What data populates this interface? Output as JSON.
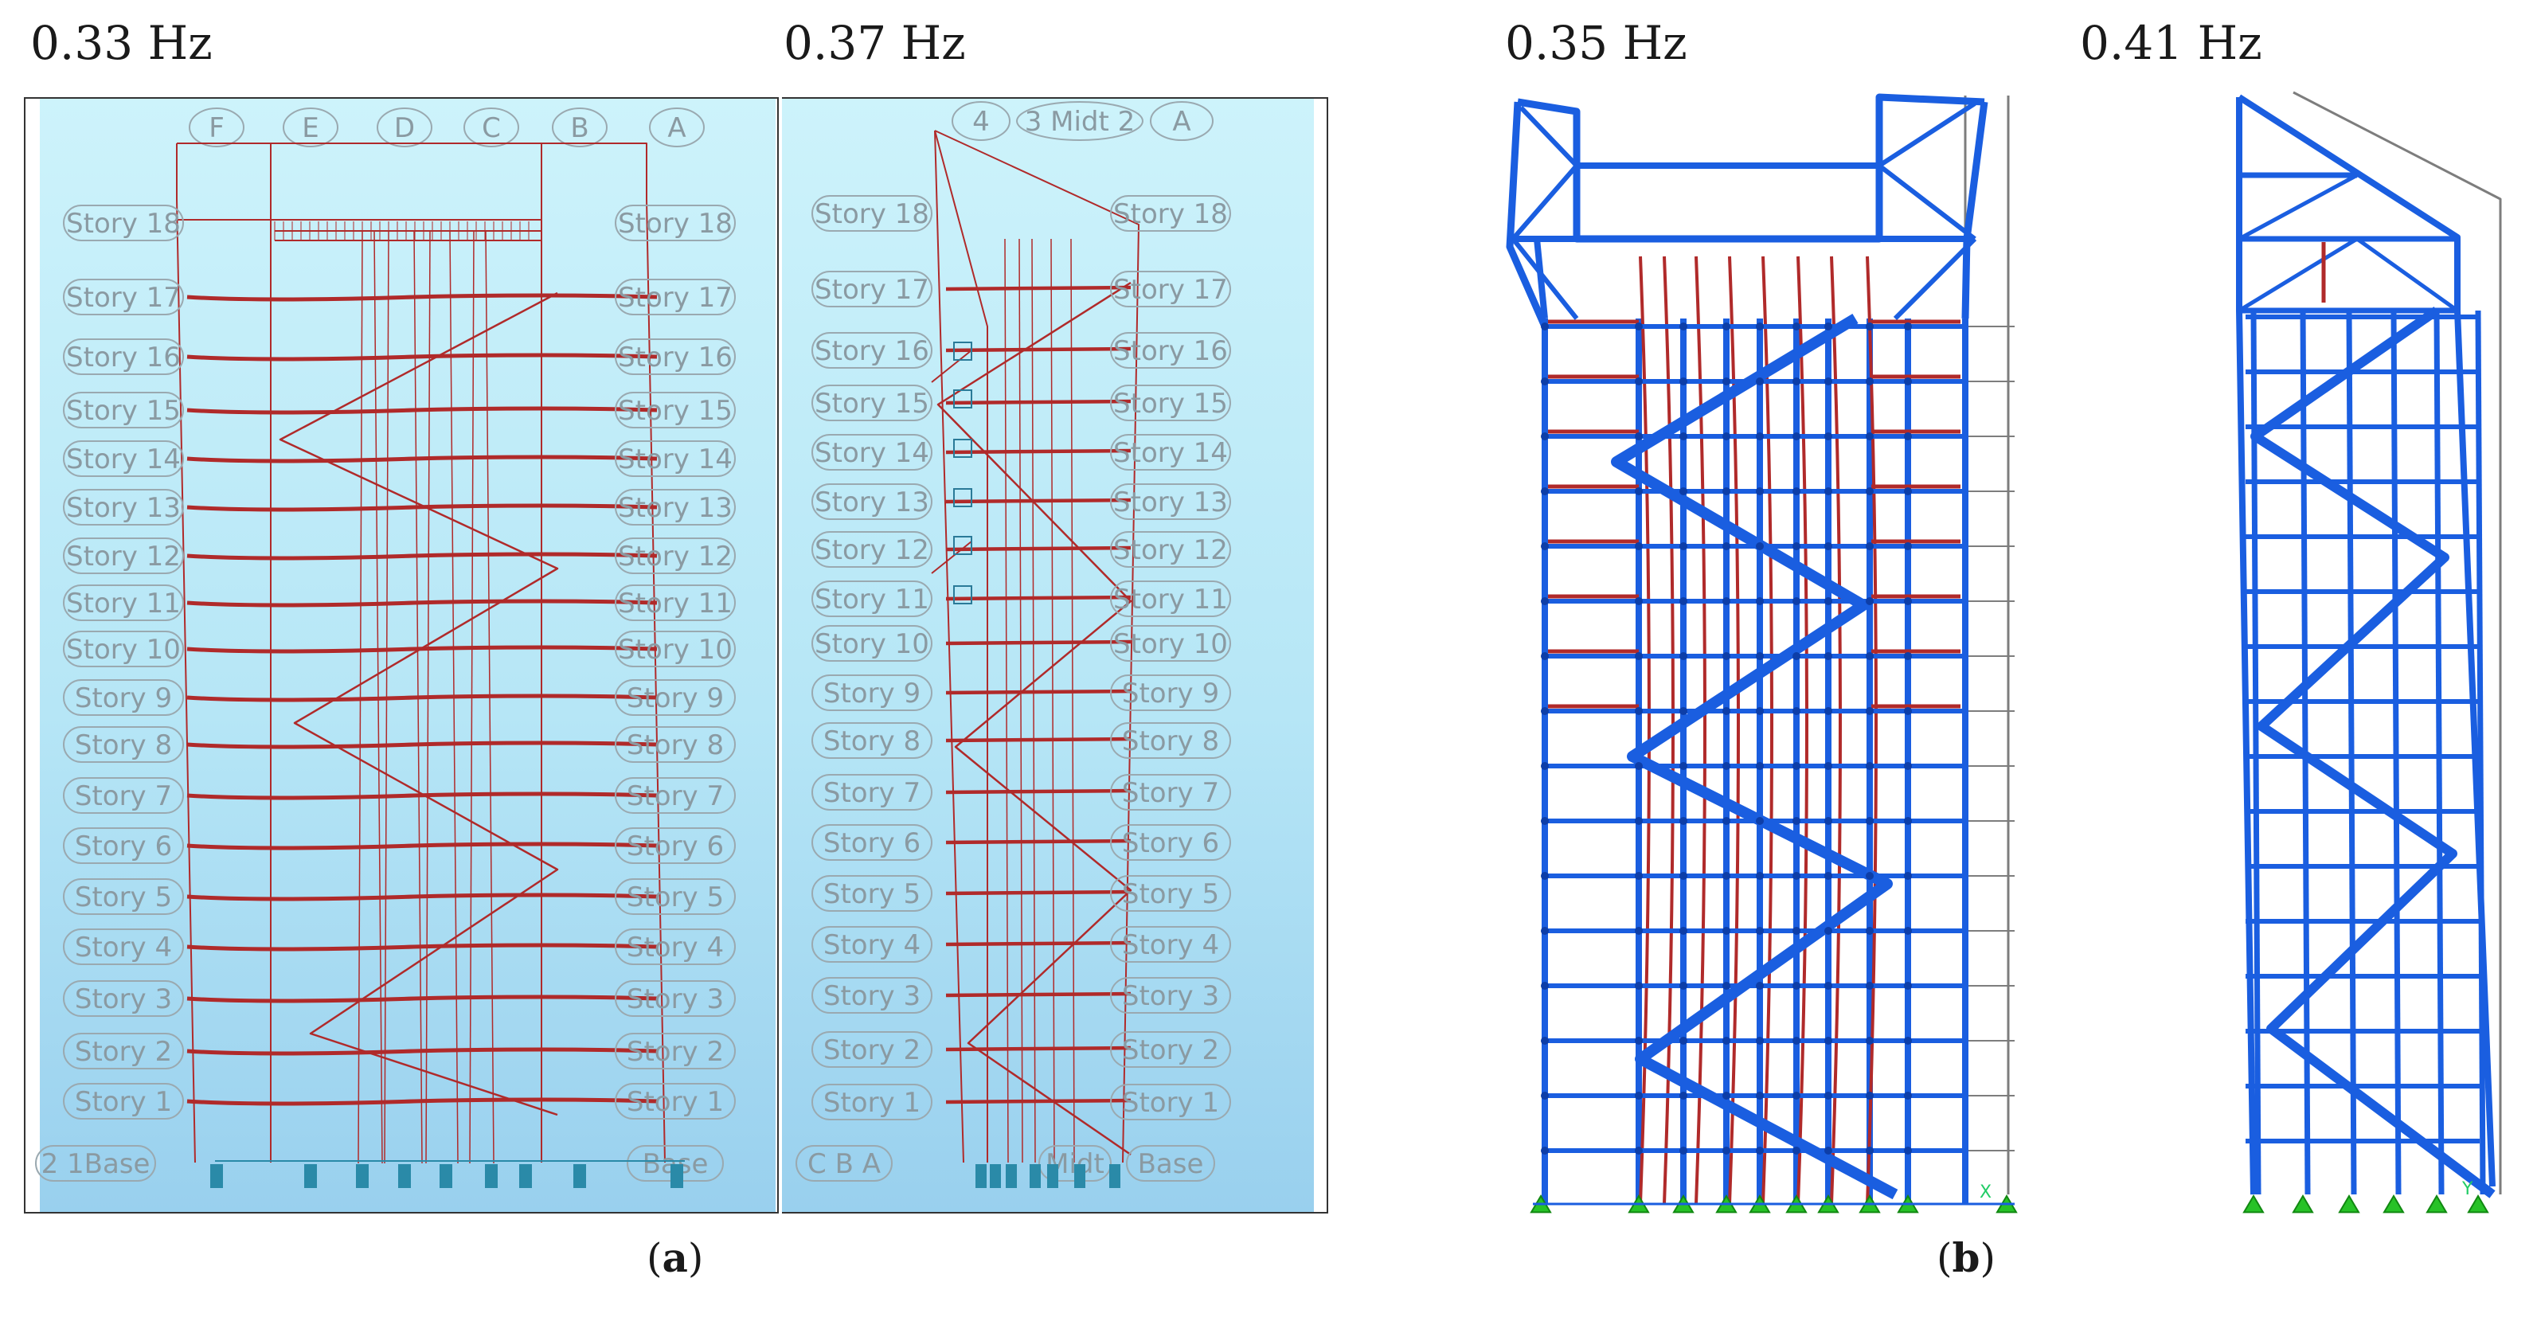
{
  "frequency_labels": [
    "0.33 Hz",
    "0.37 Hz",
    "0.35 Hz",
    "0.41 Hz"
  ],
  "subfigure_labels": {
    "a_open": "(",
    "a": "a",
    "a_close": ")",
    "b_open": "(",
    "b": "b",
    "b_close": ")"
  },
  "grid_labels_a1": [
    "F",
    "E",
    "D",
    "C",
    "B",
    "A"
  ],
  "grid_labels_a2": [
    "4",
    "3 Midt 2",
    "A"
  ],
  "stories": [
    "Story 18",
    "Story 17",
    "Story 16",
    "Story 15",
    "Story 14",
    "Story 13",
    "Story 12",
    "Story 11",
    "Story 10",
    "Story 9",
    "Story 8",
    "Story 7",
    "Story 6",
    "Story 5",
    "Story 4",
    "Story 3",
    "Story 2",
    "Story 1"
  ],
  "base_labels_a1": {
    "left": "2 1Base",
    "right": "Base"
  },
  "base_labels_a2": {
    "left": "C B A",
    "mid": "Midt",
    "right": "Base"
  },
  "axis_labels": {
    "b1": "X",
    "b2": "Y"
  },
  "colors": {
    "frame_red": "#b02a2a",
    "frame_blue": "#1a5ee0",
    "support_green": "#27c227",
    "grey_line": "#7d7d7d"
  }
}
